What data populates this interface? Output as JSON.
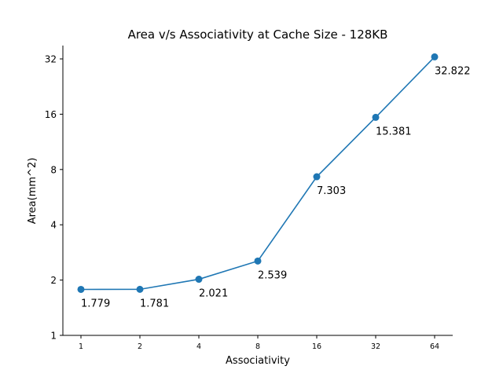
{
  "chart_data": {
    "type": "line",
    "title": "Area v/s Associativity at Cache Size - 128KB",
    "xlabel": "Associativity",
    "ylabel": "Area(mm^2)",
    "x_scale": "log2",
    "y_scale": "log2",
    "x_ticks": [
      "1",
      "2",
      "4",
      "8",
      "16",
      "32",
      "64"
    ],
    "y_ticks": [
      "1",
      "2",
      "4",
      "8",
      "16",
      "32"
    ],
    "ylim": [
      1,
      40
    ],
    "grid": false,
    "series": [
      {
        "x": [
          1,
          2,
          4,
          8,
          16,
          32,
          64
        ],
        "values": [
          1.779,
          1.781,
          2.021,
          2.539,
          7.303,
          15.381,
          32.822
        ],
        "labels": [
          "1.779",
          "1.781",
          "2.021",
          "2.539",
          "7.303",
          "15.381",
          "32.822"
        ],
        "color": "#1f77b4"
      }
    ]
  }
}
